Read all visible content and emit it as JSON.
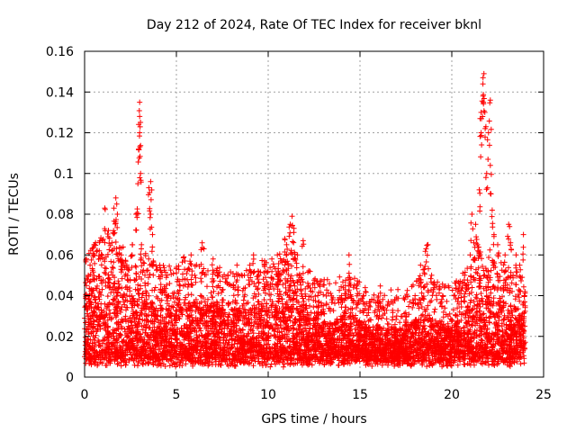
{
  "chart_data": {
    "type": "scatter",
    "title": "Day 212 of 2024, Rate Of TEC Index for receiver bknl",
    "xlabel": "GPS time / hours",
    "ylabel": "ROTI / TECUs",
    "xlim": [
      0,
      25
    ],
    "ylim": [
      0,
      0.16
    ],
    "xticks": [
      0,
      5,
      10,
      15,
      20,
      25
    ],
    "yticks": [
      0,
      0.02,
      0.04,
      0.06,
      0.08,
      0.1,
      0.12,
      0.14,
      0.16
    ],
    "xtick_labels": [
      "0",
      "5",
      "10",
      "15",
      "20",
      "25"
    ],
    "ytick_labels": [
      "0",
      "0.02",
      "0.04",
      "0.06",
      "0.08",
      "0.1",
      "0.12",
      "0.14",
      "0.16"
    ],
    "grid": true,
    "marker": "+",
    "color": "#ff0000",
    "series": [
      {
        "name": "ROTI",
        "points": [
          [
            0.1,
            0.045
          ],
          [
            0.2,
            0.05
          ],
          [
            0.3,
            0.055
          ],
          [
            0.5,
            0.06
          ],
          [
            0.8,
            0.062
          ],
          [
            1.1,
            0.083
          ],
          [
            1.3,
            0.072
          ],
          [
            1.6,
            0.083
          ],
          [
            1.7,
            0.088
          ],
          [
            1.75,
            0.085
          ],
          [
            2.0,
            0.06
          ],
          [
            2.3,
            0.055
          ],
          [
            2.6,
            0.065
          ],
          [
            2.8,
            0.08
          ],
          [
            2.9,
            0.095
          ],
          [
            2.95,
            0.112
          ],
          [
            3.0,
            0.12
          ],
          [
            3.0,
            0.128
          ],
          [
            3.0,
            0.135
          ],
          [
            3.05,
            0.1
          ],
          [
            3.1,
            0.065
          ],
          [
            3.3,
            0.045
          ],
          [
            3.5,
            0.093
          ],
          [
            3.6,
            0.096
          ],
          [
            3.6,
            0.08
          ],
          [
            3.7,
            0.07
          ],
          [
            4.1,
            0.055
          ],
          [
            4.5,
            0.05
          ],
          [
            5.2,
            0.045
          ],
          [
            5.4,
            0.059
          ],
          [
            5.8,
            0.06
          ],
          [
            6.0,
            0.05
          ],
          [
            6.4,
            0.066
          ],
          [
            6.5,
            0.063
          ],
          [
            7.0,
            0.058
          ],
          [
            7.3,
            0.05
          ],
          [
            7.8,
            0.05
          ],
          [
            8.3,
            0.055
          ],
          [
            8.7,
            0.05
          ],
          [
            9.0,
            0.055
          ],
          [
            9.2,
            0.06
          ],
          [
            9.5,
            0.05
          ],
          [
            9.8,
            0.057
          ],
          [
            10.0,
            0.045
          ],
          [
            10.2,
            0.058
          ],
          [
            10.5,
            0.06
          ],
          [
            10.6,
            0.05
          ],
          [
            10.9,
            0.068
          ],
          [
            11.0,
            0.065
          ],
          [
            11.2,
            0.075
          ],
          [
            11.3,
            0.079
          ],
          [
            11.4,
            0.073
          ],
          [
            11.6,
            0.06
          ],
          [
            11.9,
            0.067
          ],
          [
            12.2,
            0.045
          ],
          [
            12.7,
            0.04
          ],
          [
            13.0,
            0.035
          ],
          [
            13.5,
            0.038
          ],
          [
            14.0,
            0.04
          ],
          [
            14.2,
            0.045
          ],
          [
            14.4,
            0.06
          ],
          [
            14.5,
            0.048
          ],
          [
            14.8,
            0.045
          ],
          [
            15.2,
            0.04
          ],
          [
            15.5,
            0.035
          ],
          [
            16.0,
            0.035
          ],
          [
            16.5,
            0.035
          ],
          [
            17.0,
            0.03
          ],
          [
            17.5,
            0.03
          ],
          [
            18.0,
            0.04
          ],
          [
            18.2,
            0.045
          ],
          [
            18.3,
            0.055
          ],
          [
            18.5,
            0.053
          ],
          [
            18.6,
            0.063
          ],
          [
            18.7,
            0.065
          ],
          [
            18.9,
            0.05
          ],
          [
            19.5,
            0.04
          ],
          [
            19.8,
            0.03
          ],
          [
            20.0,
            0.028
          ],
          [
            20.3,
            0.03
          ],
          [
            20.7,
            0.05
          ],
          [
            21.0,
            0.06
          ],
          [
            21.1,
            0.08
          ],
          [
            21.2,
            0.066
          ],
          [
            21.3,
            0.075
          ],
          [
            21.4,
            0.065
          ],
          [
            21.5,
            0.092
          ],
          [
            21.6,
            0.12
          ],
          [
            21.6,
            0.13
          ],
          [
            21.7,
            0.138
          ],
          [
            21.7,
            0.147
          ],
          [
            21.75,
            0.149
          ],
          [
            21.8,
            0.13
          ],
          [
            21.9,
            0.1
          ],
          [
            22.0,
            0.12
          ],
          [
            22.1,
            0.136
          ],
          [
            22.1,
            0.104
          ],
          [
            22.2,
            0.082
          ],
          [
            22.3,
            0.07
          ],
          [
            22.5,
            0.065
          ],
          [
            22.9,
            0.06
          ],
          [
            23.1,
            0.075
          ],
          [
            23.2,
            0.066
          ],
          [
            23.5,
            0.06
          ],
          [
            23.7,
            0.055
          ],
          [
            23.9,
            0.07
          ],
          [
            23.95,
            0.04
          ]
        ]
      }
    ],
    "dense_band": {
      "description": "dense cluster of + markers filling the lower band across the full time range",
      "x_range": [
        0,
        24
      ],
      "y_min": [
        0.005,
        0.012
      ],
      "y_max_profile": [
        [
          0,
          0.04
        ],
        [
          0.5,
          0.045
        ],
        [
          1.0,
          0.05
        ],
        [
          1.5,
          0.052
        ],
        [
          2.0,
          0.045
        ],
        [
          2.5,
          0.04
        ],
        [
          3.0,
          0.042
        ],
        [
          3.5,
          0.04
        ],
        [
          4.0,
          0.035
        ],
        [
          4.5,
          0.035
        ],
        [
          5.0,
          0.035
        ],
        [
          5.5,
          0.038
        ],
        [
          6.0,
          0.036
        ],
        [
          6.5,
          0.04
        ],
        [
          7.0,
          0.036
        ],
        [
          7.5,
          0.034
        ],
        [
          8.0,
          0.033
        ],
        [
          8.5,
          0.032
        ],
        [
          9.0,
          0.035
        ],
        [
          9.5,
          0.038
        ],
        [
          10.0,
          0.036
        ],
        [
          10.5,
          0.04
        ],
        [
          11.0,
          0.045
        ],
        [
          11.5,
          0.042
        ],
        [
          12.0,
          0.035
        ],
        [
          12.5,
          0.03
        ],
        [
          13.0,
          0.028
        ],
        [
          13.5,
          0.028
        ],
        [
          14.0,
          0.03
        ],
        [
          14.5,
          0.032
        ],
        [
          15.0,
          0.028
        ],
        [
          15.5,
          0.025
        ],
        [
          16.0,
          0.025
        ],
        [
          16.5,
          0.025
        ],
        [
          17.0,
          0.024
        ],
        [
          17.5,
          0.024
        ],
        [
          18.0,
          0.028
        ],
        [
          18.5,
          0.032
        ],
        [
          19.0,
          0.028
        ],
        [
          19.5,
          0.026
        ],
        [
          20.0,
          0.025
        ],
        [
          20.5,
          0.03
        ],
        [
          21.0,
          0.038
        ],
        [
          21.5,
          0.045
        ],
        [
          22.0,
          0.045
        ],
        [
          22.5,
          0.04
        ],
        [
          23.0,
          0.036
        ],
        [
          23.5,
          0.035
        ],
        [
          24.0,
          0.03
        ]
      ]
    }
  }
}
